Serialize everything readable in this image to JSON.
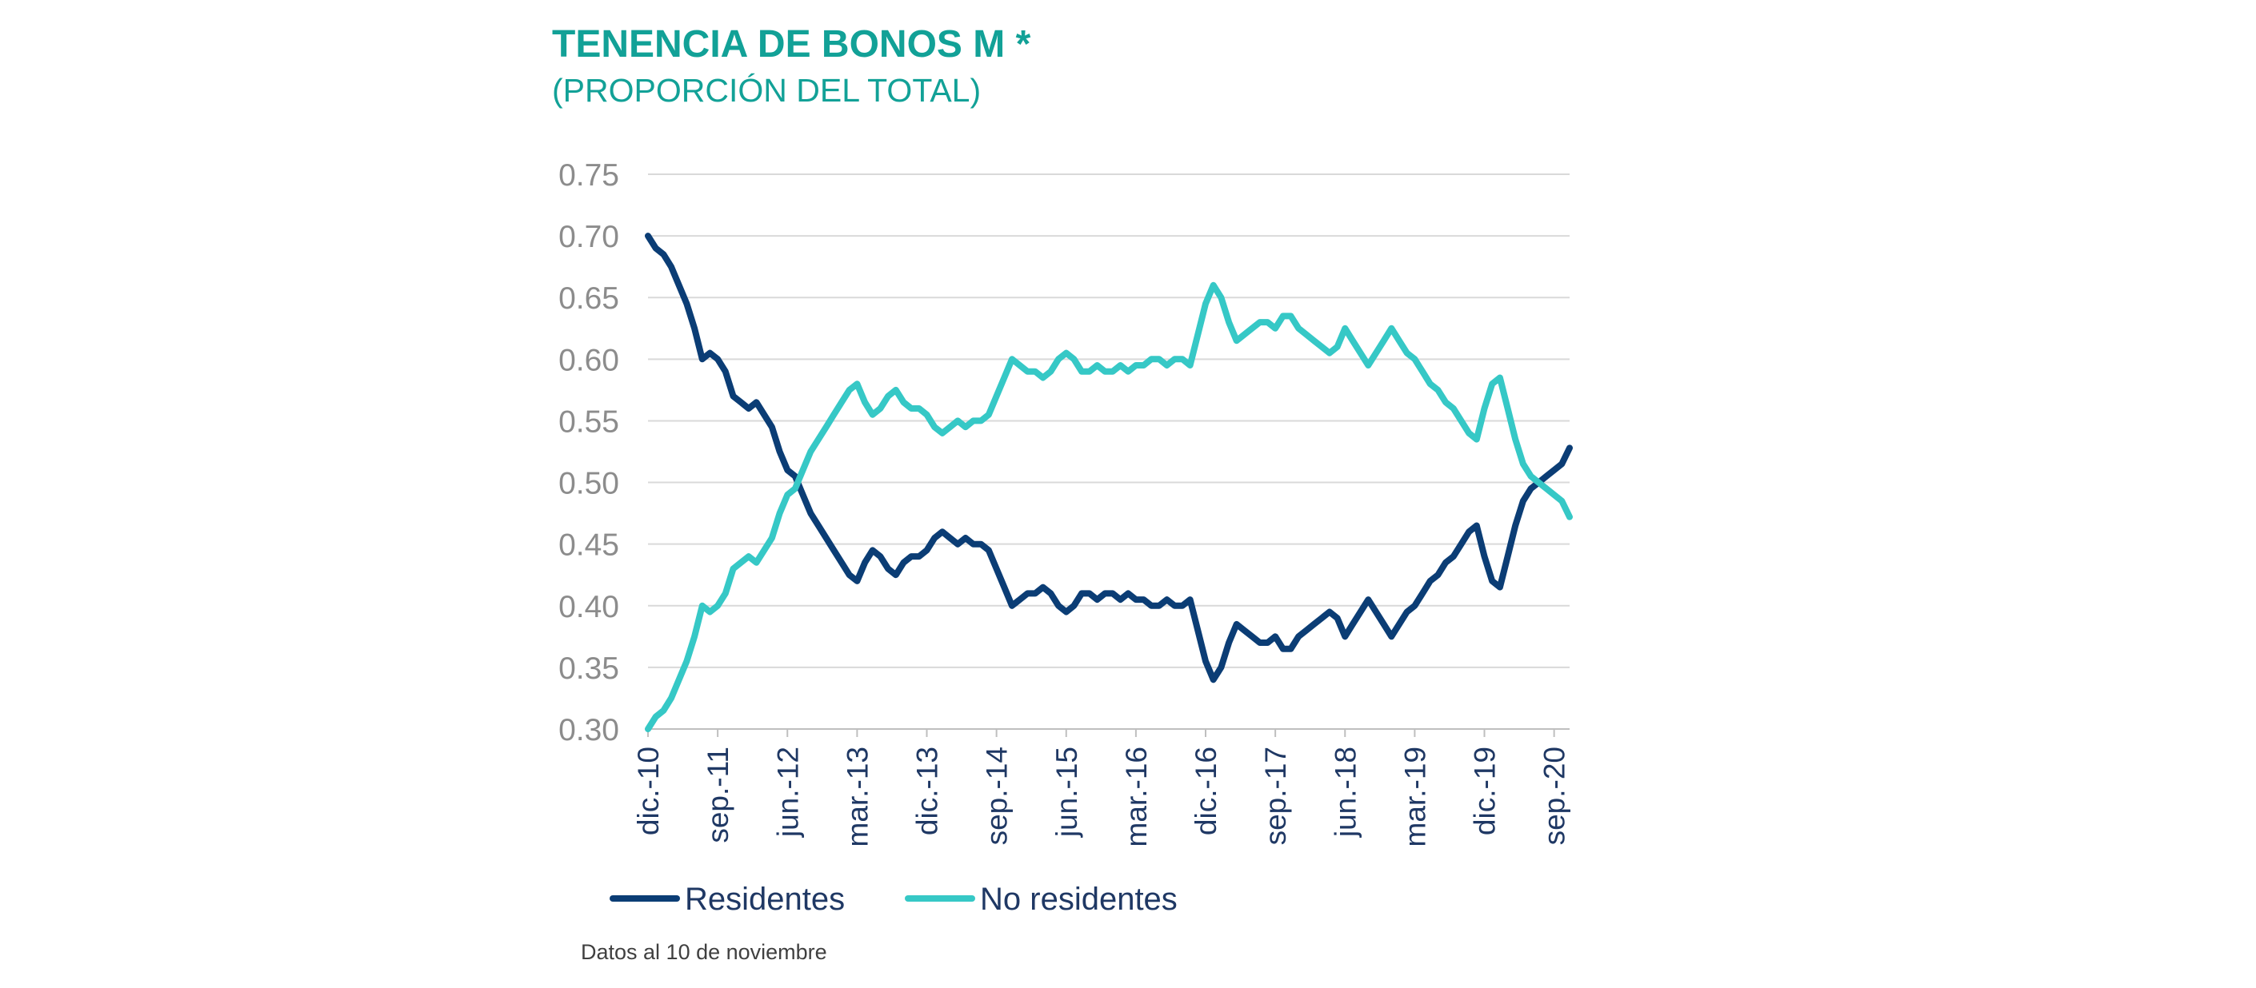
{
  "header": {
    "title": "TENENCIA DE BONOS M *",
    "subtitle": "(PROPORCIÓN DEL TOTAL)"
  },
  "footnote": "Datos al 10 de noviembre",
  "colors": {
    "title": "#12A197",
    "residentes": "#0B3D75",
    "no_residentes": "#36C8C6",
    "grid": "#D9D9D9",
    "ytick": "#8C8C8C",
    "xtick": "#1F3864"
  },
  "chart_data": {
    "type": "line",
    "title": "TENENCIA DE BONOS M *",
    "subtitle": "(PROPORCIÓN DEL TOTAL)",
    "xlabel": "",
    "ylabel": "",
    "ylim": [
      0.3,
      0.75
    ],
    "yticks": [
      "0.75",
      "0.70",
      "0.65",
      "0.60",
      "0.55",
      "0.50",
      "0.45",
      "0.40",
      "0.35",
      "0.30"
    ],
    "x_start": "2010-12",
    "x_end": "2020-11",
    "xticks": [
      {
        "label": "dic.-10",
        "date": "2010-12"
      },
      {
        "label": "sep.-11",
        "date": "2011-09"
      },
      {
        "label": "jun.-12",
        "date": "2012-06"
      },
      {
        "label": "mar.-13",
        "date": "2013-03"
      },
      {
        "label": "dic.-13",
        "date": "2013-12"
      },
      {
        "label": "sep.-14",
        "date": "2014-09"
      },
      {
        "label": "jun.-15",
        "date": "2015-06"
      },
      {
        "label": "mar.-16",
        "date": "2016-03"
      },
      {
        "label": "dic.-16",
        "date": "2016-12"
      },
      {
        "label": "sep.-17",
        "date": "2017-09"
      },
      {
        "label": "jun.-18",
        "date": "2018-06"
      },
      {
        "label": "mar.-19",
        "date": "2019-03"
      },
      {
        "label": "dic.-19",
        "date": "2019-12"
      },
      {
        "label": "sep.-20",
        "date": "2020-09"
      }
    ],
    "grid": true,
    "legend": "bottom",
    "series": [
      {
        "name": "Residentes",
        "color": "#0B3D75",
        "points": [
          [
            "2010-12",
            0.7
          ],
          [
            "2011-01",
            0.69
          ],
          [
            "2011-02",
            0.685
          ],
          [
            "2011-03",
            0.675
          ],
          [
            "2011-04",
            0.66
          ],
          [
            "2011-05",
            0.645
          ],
          [
            "2011-06",
            0.625
          ],
          [
            "2011-07",
            0.6
          ],
          [
            "2011-08",
            0.605
          ],
          [
            "2011-09",
            0.6
          ],
          [
            "2011-10",
            0.59
          ],
          [
            "2011-11",
            0.57
          ],
          [
            "2011-12",
            0.565
          ],
          [
            "2012-01",
            0.56
          ],
          [
            "2012-02",
            0.565
          ],
          [
            "2012-03",
            0.555
          ],
          [
            "2012-04",
            0.545
          ],
          [
            "2012-05",
            0.525
          ],
          [
            "2012-06",
            0.51
          ],
          [
            "2012-07",
            0.505
          ],
          [
            "2012-08",
            0.49
          ],
          [
            "2012-09",
            0.475
          ],
          [
            "2012-10",
            0.465
          ],
          [
            "2012-11",
            0.455
          ],
          [
            "2012-12",
            0.445
          ],
          [
            "2013-01",
            0.435
          ],
          [
            "2013-02",
            0.425
          ],
          [
            "2013-03",
            0.42
          ],
          [
            "2013-04",
            0.435
          ],
          [
            "2013-05",
            0.445
          ],
          [
            "2013-06",
            0.44
          ],
          [
            "2013-07",
            0.43
          ],
          [
            "2013-08",
            0.425
          ],
          [
            "2013-09",
            0.435
          ],
          [
            "2013-10",
            0.44
          ],
          [
            "2013-11",
            0.44
          ],
          [
            "2013-12",
            0.445
          ],
          [
            "2014-01",
            0.455
          ],
          [
            "2014-02",
            0.46
          ],
          [
            "2014-03",
            0.455
          ],
          [
            "2014-04",
            0.45
          ],
          [
            "2014-05",
            0.455
          ],
          [
            "2014-06",
            0.45
          ],
          [
            "2014-07",
            0.45
          ],
          [
            "2014-08",
            0.445
          ],
          [
            "2014-09",
            0.43
          ],
          [
            "2014-10",
            0.415
          ],
          [
            "2014-11",
            0.4
          ],
          [
            "2014-12",
            0.405
          ],
          [
            "2015-01",
            0.41
          ],
          [
            "2015-02",
            0.41
          ],
          [
            "2015-03",
            0.415
          ],
          [
            "2015-04",
            0.41
          ],
          [
            "2015-05",
            0.4
          ],
          [
            "2015-06",
            0.395
          ],
          [
            "2015-07",
            0.4
          ],
          [
            "2015-08",
            0.41
          ],
          [
            "2015-09",
            0.41
          ],
          [
            "2015-10",
            0.405
          ],
          [
            "2015-11",
            0.41
          ],
          [
            "2015-12",
            0.41
          ],
          [
            "2016-01",
            0.405
          ],
          [
            "2016-02",
            0.41
          ],
          [
            "2016-03",
            0.405
          ],
          [
            "2016-04",
            0.405
          ],
          [
            "2016-05",
            0.4
          ],
          [
            "2016-06",
            0.4
          ],
          [
            "2016-07",
            0.405
          ],
          [
            "2016-08",
            0.4
          ],
          [
            "2016-09",
            0.4
          ],
          [
            "2016-10",
            0.405
          ],
          [
            "2016-11",
            0.38
          ],
          [
            "2016-12",
            0.355
          ],
          [
            "2017-01",
            0.34
          ],
          [
            "2017-02",
            0.35
          ],
          [
            "2017-03",
            0.37
          ],
          [
            "2017-04",
            0.385
          ],
          [
            "2017-05",
            0.38
          ],
          [
            "2017-06",
            0.375
          ],
          [
            "2017-07",
            0.37
          ],
          [
            "2017-08",
            0.37
          ],
          [
            "2017-09",
            0.375
          ],
          [
            "2017-10",
            0.365
          ],
          [
            "2017-11",
            0.365
          ],
          [
            "2017-12",
            0.375
          ],
          [
            "2018-01",
            0.38
          ],
          [
            "2018-02",
            0.385
          ],
          [
            "2018-03",
            0.39
          ],
          [
            "2018-04",
            0.395
          ],
          [
            "2018-05",
            0.39
          ],
          [
            "2018-06",
            0.375
          ],
          [
            "2018-07",
            0.385
          ],
          [
            "2018-08",
            0.395
          ],
          [
            "2018-09",
            0.405
          ],
          [
            "2018-10",
            0.395
          ],
          [
            "2018-11",
            0.385
          ],
          [
            "2018-12",
            0.375
          ],
          [
            "2019-01",
            0.385
          ],
          [
            "2019-02",
            0.395
          ],
          [
            "2019-03",
            0.4
          ],
          [
            "2019-04",
            0.41
          ],
          [
            "2019-05",
            0.42
          ],
          [
            "2019-06",
            0.425
          ],
          [
            "2019-07",
            0.435
          ],
          [
            "2019-08",
            0.44
          ],
          [
            "2019-09",
            0.45
          ],
          [
            "2019-10",
            0.46
          ],
          [
            "2019-11",
            0.465
          ],
          [
            "2019-12",
            0.44
          ],
          [
            "2020-01",
            0.42
          ],
          [
            "2020-02",
            0.415
          ],
          [
            "2020-03",
            0.44
          ],
          [
            "2020-04",
            0.465
          ],
          [
            "2020-05",
            0.485
          ],
          [
            "2020-06",
            0.495
          ],
          [
            "2020-07",
            0.5
          ],
          [
            "2020-08",
            0.505
          ],
          [
            "2020-09",
            0.51
          ],
          [
            "2020-10",
            0.515
          ],
          [
            "2020-11",
            0.528
          ]
        ]
      },
      {
        "name": "No residentes",
        "color": "#36C8C6",
        "points": [
          [
            "2010-12",
            0.3
          ],
          [
            "2011-01",
            0.31
          ],
          [
            "2011-02",
            0.315
          ],
          [
            "2011-03",
            0.325
          ],
          [
            "2011-04",
            0.34
          ],
          [
            "2011-05",
            0.355
          ],
          [
            "2011-06",
            0.375
          ],
          [
            "2011-07",
            0.4
          ],
          [
            "2011-08",
            0.395
          ],
          [
            "2011-09",
            0.4
          ],
          [
            "2011-10",
            0.41
          ],
          [
            "2011-11",
            0.43
          ],
          [
            "2011-12",
            0.435
          ],
          [
            "2012-01",
            0.44
          ],
          [
            "2012-02",
            0.435
          ],
          [
            "2012-03",
            0.445
          ],
          [
            "2012-04",
            0.455
          ],
          [
            "2012-05",
            0.475
          ],
          [
            "2012-06",
            0.49
          ],
          [
            "2012-07",
            0.495
          ],
          [
            "2012-08",
            0.51
          ],
          [
            "2012-09",
            0.525
          ],
          [
            "2012-10",
            0.535
          ],
          [
            "2012-11",
            0.545
          ],
          [
            "2012-12",
            0.555
          ],
          [
            "2013-01",
            0.565
          ],
          [
            "2013-02",
            0.575
          ],
          [
            "2013-03",
            0.58
          ],
          [
            "2013-04",
            0.565
          ],
          [
            "2013-05",
            0.555
          ],
          [
            "2013-06",
            0.56
          ],
          [
            "2013-07",
            0.57
          ],
          [
            "2013-08",
            0.575
          ],
          [
            "2013-09",
            0.565
          ],
          [
            "2013-10",
            0.56
          ],
          [
            "2013-11",
            0.56
          ],
          [
            "2013-12",
            0.555
          ],
          [
            "2014-01",
            0.545
          ],
          [
            "2014-02",
            0.54
          ],
          [
            "2014-03",
            0.545
          ],
          [
            "2014-04",
            0.55
          ],
          [
            "2014-05",
            0.545
          ],
          [
            "2014-06",
            0.55
          ],
          [
            "2014-07",
            0.55
          ],
          [
            "2014-08",
            0.555
          ],
          [
            "2014-09",
            0.57
          ],
          [
            "2014-10",
            0.585
          ],
          [
            "2014-11",
            0.6
          ],
          [
            "2014-12",
            0.595
          ],
          [
            "2015-01",
            0.59
          ],
          [
            "2015-02",
            0.59
          ],
          [
            "2015-03",
            0.585
          ],
          [
            "2015-04",
            0.59
          ],
          [
            "2015-05",
            0.6
          ],
          [
            "2015-06",
            0.605
          ],
          [
            "2015-07",
            0.6
          ],
          [
            "2015-08",
            0.59
          ],
          [
            "2015-09",
            0.59
          ],
          [
            "2015-10",
            0.595
          ],
          [
            "2015-11",
            0.59
          ],
          [
            "2015-12",
            0.59
          ],
          [
            "2016-01",
            0.595
          ],
          [
            "2016-02",
            0.59
          ],
          [
            "2016-03",
            0.595
          ],
          [
            "2016-04",
            0.595
          ],
          [
            "2016-05",
            0.6
          ],
          [
            "2016-06",
            0.6
          ],
          [
            "2016-07",
            0.595
          ],
          [
            "2016-08",
            0.6
          ],
          [
            "2016-09",
            0.6
          ],
          [
            "2016-10",
            0.595
          ],
          [
            "2016-11",
            0.62
          ],
          [
            "2016-12",
            0.645
          ],
          [
            "2017-01",
            0.66
          ],
          [
            "2017-02",
            0.65
          ],
          [
            "2017-03",
            0.63
          ],
          [
            "2017-04",
            0.615
          ],
          [
            "2017-05",
            0.62
          ],
          [
            "2017-06",
            0.625
          ],
          [
            "2017-07",
            0.63
          ],
          [
            "2017-08",
            0.63
          ],
          [
            "2017-09",
            0.625
          ],
          [
            "2017-10",
            0.635
          ],
          [
            "2017-11",
            0.635
          ],
          [
            "2017-12",
            0.625
          ],
          [
            "2018-01",
            0.62
          ],
          [
            "2018-02",
            0.615
          ],
          [
            "2018-03",
            0.61
          ],
          [
            "2018-04",
            0.605
          ],
          [
            "2018-05",
            0.61
          ],
          [
            "2018-06",
            0.625
          ],
          [
            "2018-07",
            0.615
          ],
          [
            "2018-08",
            0.605
          ],
          [
            "2018-09",
            0.595
          ],
          [
            "2018-10",
            0.605
          ],
          [
            "2018-11",
            0.615
          ],
          [
            "2018-12",
            0.625
          ],
          [
            "2019-01",
            0.615
          ],
          [
            "2019-02",
            0.605
          ],
          [
            "2019-03",
            0.6
          ],
          [
            "2019-04",
            0.59
          ],
          [
            "2019-05",
            0.58
          ],
          [
            "2019-06",
            0.575
          ],
          [
            "2019-07",
            0.565
          ],
          [
            "2019-08",
            0.56
          ],
          [
            "2019-09",
            0.55
          ],
          [
            "2019-10",
            0.54
          ],
          [
            "2019-11",
            0.535
          ],
          [
            "2019-12",
            0.56
          ],
          [
            "2020-01",
            0.58
          ],
          [
            "2020-02",
            0.585
          ],
          [
            "2020-03",
            0.56
          ],
          [
            "2020-04",
            0.535
          ],
          [
            "2020-05",
            0.515
          ],
          [
            "2020-06",
            0.505
          ],
          [
            "2020-07",
            0.5
          ],
          [
            "2020-08",
            0.495
          ],
          [
            "2020-09",
            0.49
          ],
          [
            "2020-10",
            0.485
          ],
          [
            "2020-11",
            0.472
          ]
        ]
      }
    ]
  }
}
